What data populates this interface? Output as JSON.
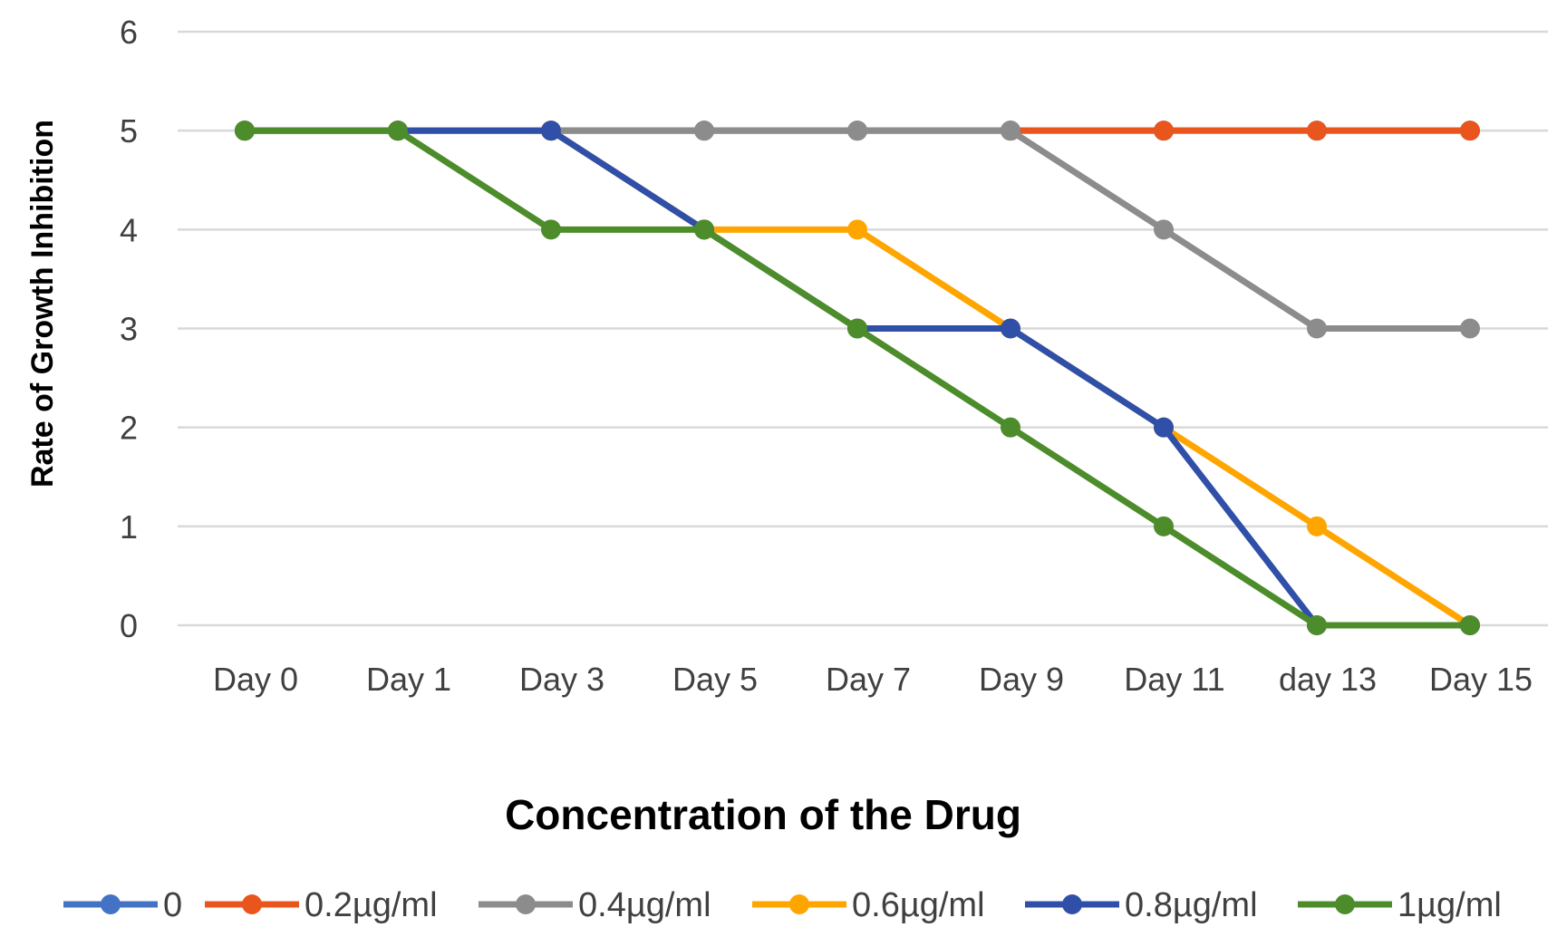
{
  "chart_data": {
    "type": "line",
    "title": "",
    "xlabel": "Concentration of the Drug",
    "ylabel": "Rate of Growth Inhibition",
    "categories": [
      "Day 0",
      "Day 1",
      "Day 3",
      "Day 5",
      "Day 7",
      "Day 9",
      "Day 11",
      "day 13",
      "Day 15"
    ],
    "ylim": [
      0,
      6
    ],
    "yticks": [
      "0",
      "1",
      "2",
      "3",
      "4",
      "5",
      "6"
    ],
    "grid": true,
    "legend_position": "bottom",
    "series": [
      {
        "name": "0",
        "color": "#4472C4",
        "values": [
          5,
          5,
          5,
          5,
          5,
          5,
          5,
          5,
          5
        ]
      },
      {
        "name": "0.2µg/ml",
        "color": "#E8561E",
        "values": [
          5,
          5,
          5,
          5,
          5,
          5,
          5,
          5,
          5
        ]
      },
      {
        "name": "0.4µg/ml",
        "color": "#8C8C8C",
        "values": [
          5,
          5,
          5,
          5,
          5,
          5,
          4,
          3,
          3
        ]
      },
      {
        "name": "0.6µg/ml",
        "color": "#FFA500",
        "values": [
          5,
          5,
          5,
          4,
          4,
          3,
          2,
          1,
          0
        ]
      },
      {
        "name": "0.8µg/ml",
        "color": "#2F4FA8",
        "values": [
          5,
          5,
          5,
          4,
          3,
          3,
          2,
          0,
          0
        ]
      },
      {
        "name": "1µg/ml",
        "color": "#4C8C2B",
        "values": [
          5,
          5,
          4,
          4,
          3,
          2,
          1,
          0,
          0
        ]
      }
    ]
  }
}
